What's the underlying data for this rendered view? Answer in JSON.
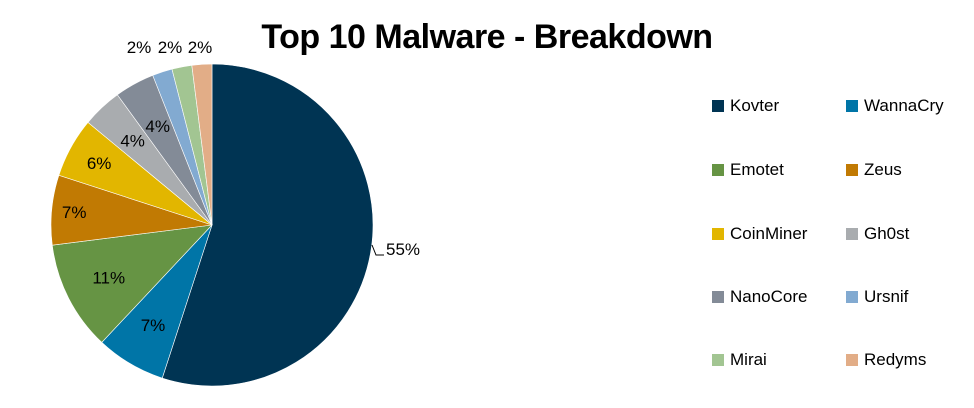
{
  "chart_data": {
    "type": "pie",
    "title": "Top 10 Malware - Breakdown",
    "categories": [
      "Kovter",
      "WannaCry",
      "Emotet",
      "Zeus",
      "CoinMiner",
      "Gh0st",
      "NanoCore",
      "Ursnif",
      "Mirai",
      "Redyms"
    ],
    "values": [
      55,
      7,
      11,
      7,
      6,
      4,
      4,
      2,
      2,
      2
    ],
    "data_labels": [
      "55%",
      "7%",
      "11%",
      "7%",
      "6%",
      "4%",
      "4%",
      "2%",
      "2%",
      "2%"
    ],
    "colors": [
      "#003453",
      "#0075a7",
      "#669444",
      "#c17a03",
      "#e2b600",
      "#a9acaf",
      "#838b97",
      "#82aad1",
      "#a2c592",
      "#e2ad87"
    ],
    "legend_position": "right",
    "start_angle": "top, clockwise"
  }
}
